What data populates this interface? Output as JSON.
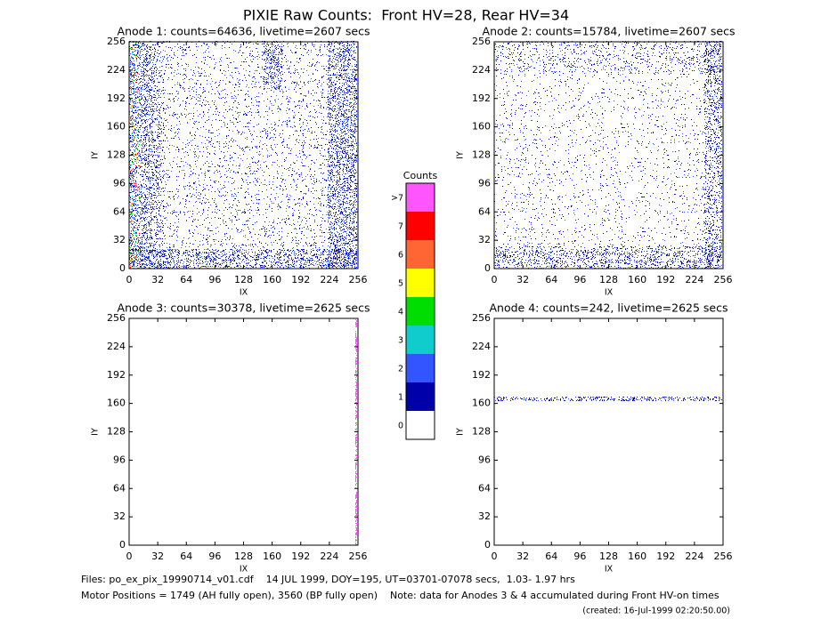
{
  "title": "PIXIE Raw Counts:  Front HV=28, Rear HV=34",
  "chart_data": [
    {
      "type": "heatmap",
      "title": "Anode 1: counts=64636, livetime=2607 secs",
      "xlabel": "IX",
      "ylabel": "IY",
      "xlim": [
        0,
        256
      ],
      "ylim": [
        0,
        256
      ],
      "xticks": [
        0,
        32,
        64,
        96,
        128,
        160,
        192,
        224,
        256
      ],
      "yticks": [
        0,
        32,
        64,
        96,
        128,
        160,
        192,
        224,
        256
      ]
    },
    {
      "type": "heatmap",
      "title": "Anode 2: counts=15784, livetime=2607 secs",
      "xlabel": "IX",
      "ylabel": "IY",
      "xlim": [
        0,
        256
      ],
      "ylim": [
        0,
        256
      ],
      "xticks": [
        0,
        32,
        64,
        96,
        128,
        160,
        192,
        224,
        256
      ],
      "yticks": [
        0,
        32,
        64,
        96,
        128,
        160,
        192,
        224,
        256
      ]
    },
    {
      "type": "heatmap",
      "title": "Anode 3: counts=30378, livetime=2625 secs",
      "xlabel": "IX",
      "ylabel": "IY",
      "xlim": [
        0,
        256
      ],
      "ylim": [
        0,
        256
      ],
      "xticks": [
        0,
        32,
        64,
        96,
        128,
        160,
        192,
        224,
        256
      ],
      "yticks": [
        0,
        32,
        64,
        96,
        128,
        160,
        192,
        224,
        256
      ]
    },
    {
      "type": "heatmap",
      "title": "Anode 4: counts=242, livetime=2625 secs",
      "xlabel": "IX",
      "ylabel": "IY",
      "xlim": [
        0,
        256
      ],
      "ylim": [
        0,
        256
      ],
      "xticks": [
        0,
        32,
        64,
        96,
        128,
        160,
        192,
        224,
        256
      ],
      "yticks": [
        0,
        32,
        64,
        96,
        128,
        160,
        192,
        224,
        256
      ]
    }
  ],
  "colorbar": {
    "title": "Counts",
    "labels": [
      ">7",
      "7",
      "6",
      "5",
      "4",
      "3",
      "2",
      "1",
      "0"
    ],
    "colors": [
      "#ff55ff",
      "#ff0000",
      "#ff6633",
      "#ffff00",
      "#00dd00",
      "#11cccc",
      "#3355ff",
      "#0000aa",
      "#ffffff"
    ]
  },
  "footer": {
    "files": "Files: po_ex_pix_19990714_v01.cdf    14 JUL 1999, DOY=195, UT=03701-07078 secs,  1.03- 1.97 hrs",
    "motor": "Motor Positions = 1749 (AH fully open), 3560 (BP fully open)    Note: data for Anodes 3 & 4 accumulated during Front HV-on times",
    "created": "(created: 16-Jul-1999 02:20:50.00)"
  }
}
